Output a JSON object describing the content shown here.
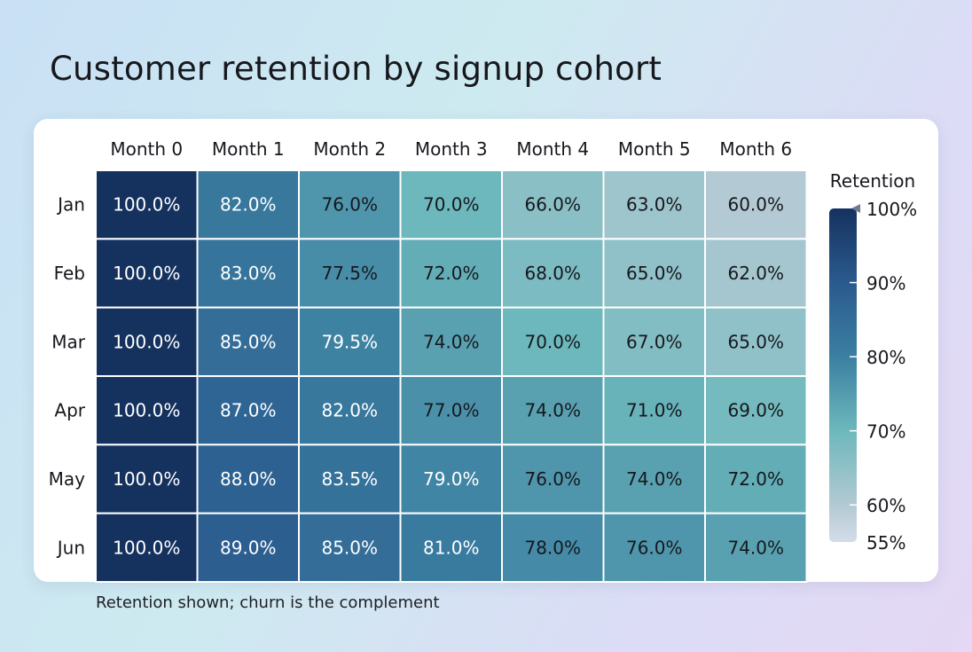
{
  "title": "Customer retention by signup cohort",
  "footnote": "Retention shown; churn is the complement",
  "chart_data": {
    "type": "heatmap",
    "title": "Customer retention by signup cohort",
    "x_categories": [
      "Month 0",
      "Month 1",
      "Month 2",
      "Month 3",
      "Month 4",
      "Month 5",
      "Month 6"
    ],
    "y_categories": [
      "Jan",
      "Feb",
      "Mar",
      "Apr",
      "May",
      "Jun"
    ],
    "values": [
      [
        100.0,
        82.0,
        76.0,
        70.0,
        66.0,
        63.0,
        60.0
      ],
      [
        100.0,
        83.0,
        77.5,
        72.0,
        68.0,
        65.0,
        62.0
      ],
      [
        100.0,
        85.0,
        79.5,
        74.0,
        70.0,
        67.0,
        65.0
      ],
      [
        100.0,
        87.0,
        82.0,
        77.0,
        74.0,
        71.0,
        69.0
      ],
      [
        100.0,
        88.0,
        83.5,
        79.0,
        76.0,
        74.0,
        72.0
      ],
      [
        100.0,
        89.0,
        85.0,
        81.0,
        78.0,
        76.0,
        74.0
      ]
    ],
    "value_format": "percent, 1 decimal",
    "colorbar": {
      "label": "Retention",
      "range": [
        55,
        100
      ],
      "ticks": [
        100,
        90,
        80,
        70,
        60,
        55
      ],
      "tick_labels": [
        "100%",
        "90%",
        "80%",
        "70%",
        "60%",
        "55%"
      ],
      "colors": {
        "55": "#d3dde8",
        "60": "#b3c9d3",
        "70": "#6db8bc",
        "80": "#3b7fa1",
        "90": "#2a5a8e",
        "100": "#15325f"
      }
    }
  }
}
